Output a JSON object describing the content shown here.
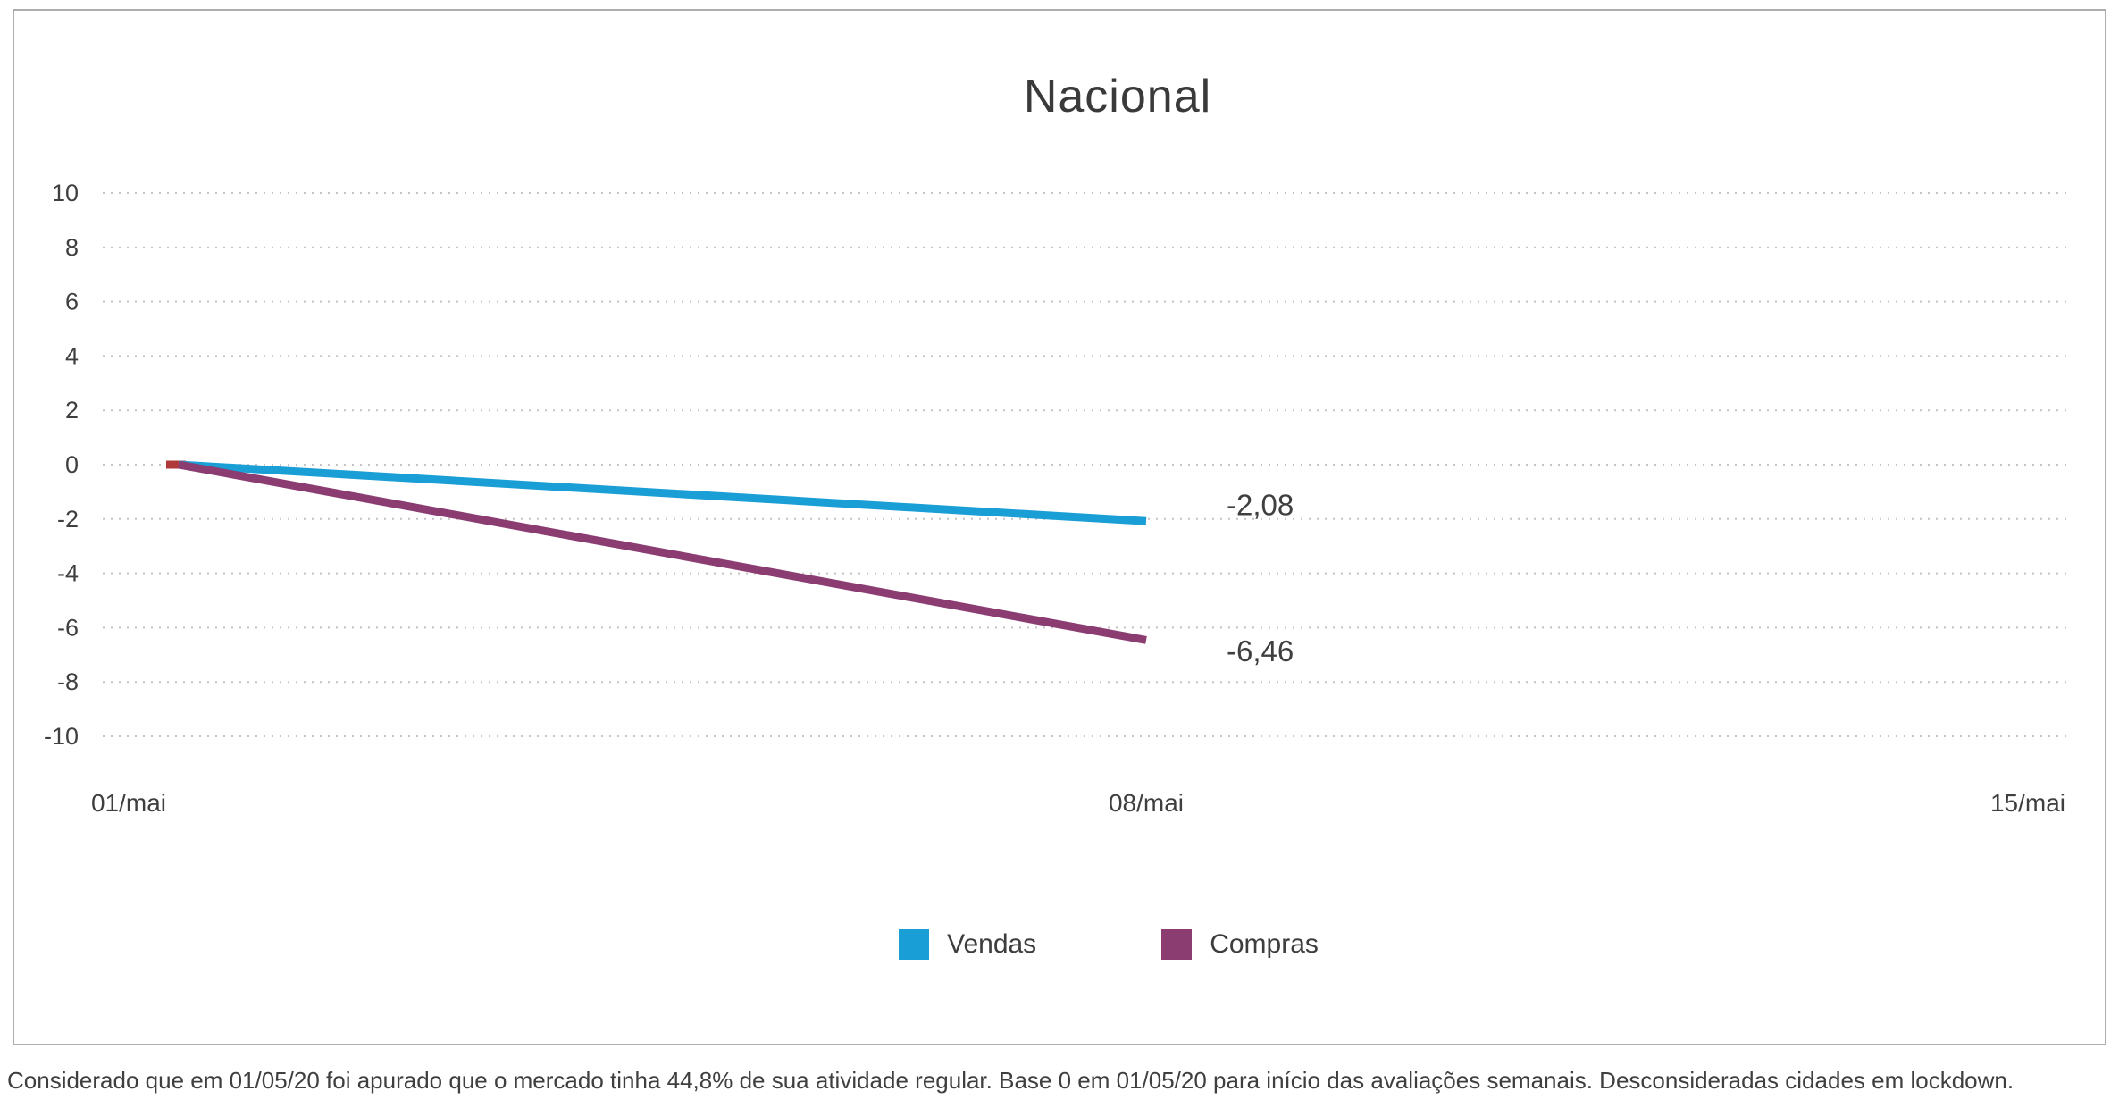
{
  "chart_data": {
    "type": "line",
    "title": "Nacional",
    "x_labels": [
      "01/mai",
      "08/mai",
      "15/mai"
    ],
    "ylim": [
      -10,
      10
    ],
    "yticks": [
      {
        "value": 10,
        "label": "10"
      },
      {
        "value": 8,
        "label": "8"
      },
      {
        "value": 6,
        "label": "6"
      },
      {
        "value": 4,
        "label": "4"
      },
      {
        "value": 2,
        "label": "2"
      },
      {
        "value": 0,
        "label": "0"
      },
      {
        "value": -2,
        "label": "-2"
      },
      {
        "value": -4,
        "label": "-4"
      },
      {
        "value": -6,
        "label": "-6"
      },
      {
        "value": -8,
        "label": "-8"
      },
      {
        "value": -10,
        "label": "-10"
      }
    ],
    "series": [
      {
        "name": "Vendas",
        "color": "#1a9ed6",
        "x": [
          "01/mai",
          "08/mai"
        ],
        "values": [
          0,
          -2.08
        ],
        "end_label": "-2,08"
      },
      {
        "name": "Compras",
        "color": "#8b3d72",
        "x": [
          "01/mai",
          "08/mai"
        ],
        "values": [
          0,
          -6.46
        ],
        "end_label": "-6,46"
      }
    ],
    "start_marker_color": "#b03a3a",
    "grid": "horizontal-dotted",
    "legend_position": "bottom"
  },
  "footer": {
    "note": "Considerado que em 01/05/20 foi apurado que o mercado tinha 44,8% de sua atividade regular. Base 0 em 01/05/20 para início das avaliações semanais. Desconsideradas cidades em lockdown."
  }
}
